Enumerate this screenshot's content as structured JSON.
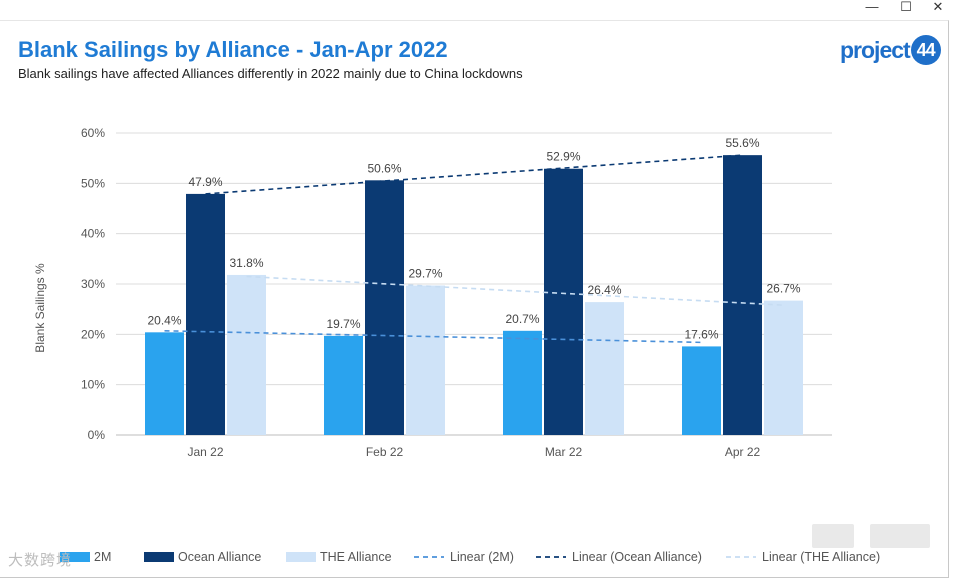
{
  "window": {
    "minimize": "—",
    "maximize": "☐",
    "close": "✕"
  },
  "title": "Blank Sailings by Alliance - Jan-Apr 2022",
  "subtitle": "Blank sailings have affected Alliances differently in 2022 mainly due to China lockdowns",
  "logo": {
    "text": "project",
    "badge": "44",
    "color": "#1f6fc9"
  },
  "watermark": "大数跨境",
  "chart_data": {
    "type": "bar",
    "title": "Blank Sailings by Alliance - Jan-Apr 2022",
    "xlabel": "",
    "ylabel": "Blank Sailings %",
    "ylim": [
      0,
      60
    ],
    "yticks": [
      "0%",
      "10%",
      "20%",
      "30%",
      "40%",
      "50%",
      "60%"
    ],
    "categories": [
      "Jan 22",
      "Feb 22",
      "Mar 22",
      "Apr 22"
    ],
    "series": [
      {
        "name": "2M",
        "legend_label": "2M",
        "color": "#2aa3ee",
        "values": [
          20.4,
          19.7,
          20.7,
          17.6
        ],
        "labels": [
          "20.4%",
          "19.7%",
          "20.7%",
          "17.6%"
        ]
      },
      {
        "name": "Ocean Alliance",
        "legend_label": "Ocean Alliance",
        "color": "#0b3a73",
        "values": [
          47.9,
          50.6,
          52.9,
          55.6
        ],
        "labels": [
          "47.9%",
          "50.6%",
          "52.9%",
          "55.6%"
        ]
      },
      {
        "name": "THE Alliance",
        "legend_label": "THE Alliance",
        "color": "#cfe3f8",
        "values": [
          31.8,
          29.7,
          26.4,
          26.7
        ],
        "labels": [
          "31.8%",
          "29.7%",
          "26.4%",
          "26.7%"
        ]
      }
    ],
    "trendlines": [
      {
        "name": "Linear (2M)",
        "color": "#4a90d9",
        "start": 20.7,
        "end": 18.4
      },
      {
        "name": "Linear (Ocean Alliance)",
        "color": "#0b3a73",
        "start": 47.9,
        "end": 55.6
      },
      {
        "name": "Linear (THE Alliance)",
        "color": "#c6dcf2",
        "start": 31.5,
        "end": 25.8
      }
    ],
    "legend": "bottom",
    "grid": true
  }
}
